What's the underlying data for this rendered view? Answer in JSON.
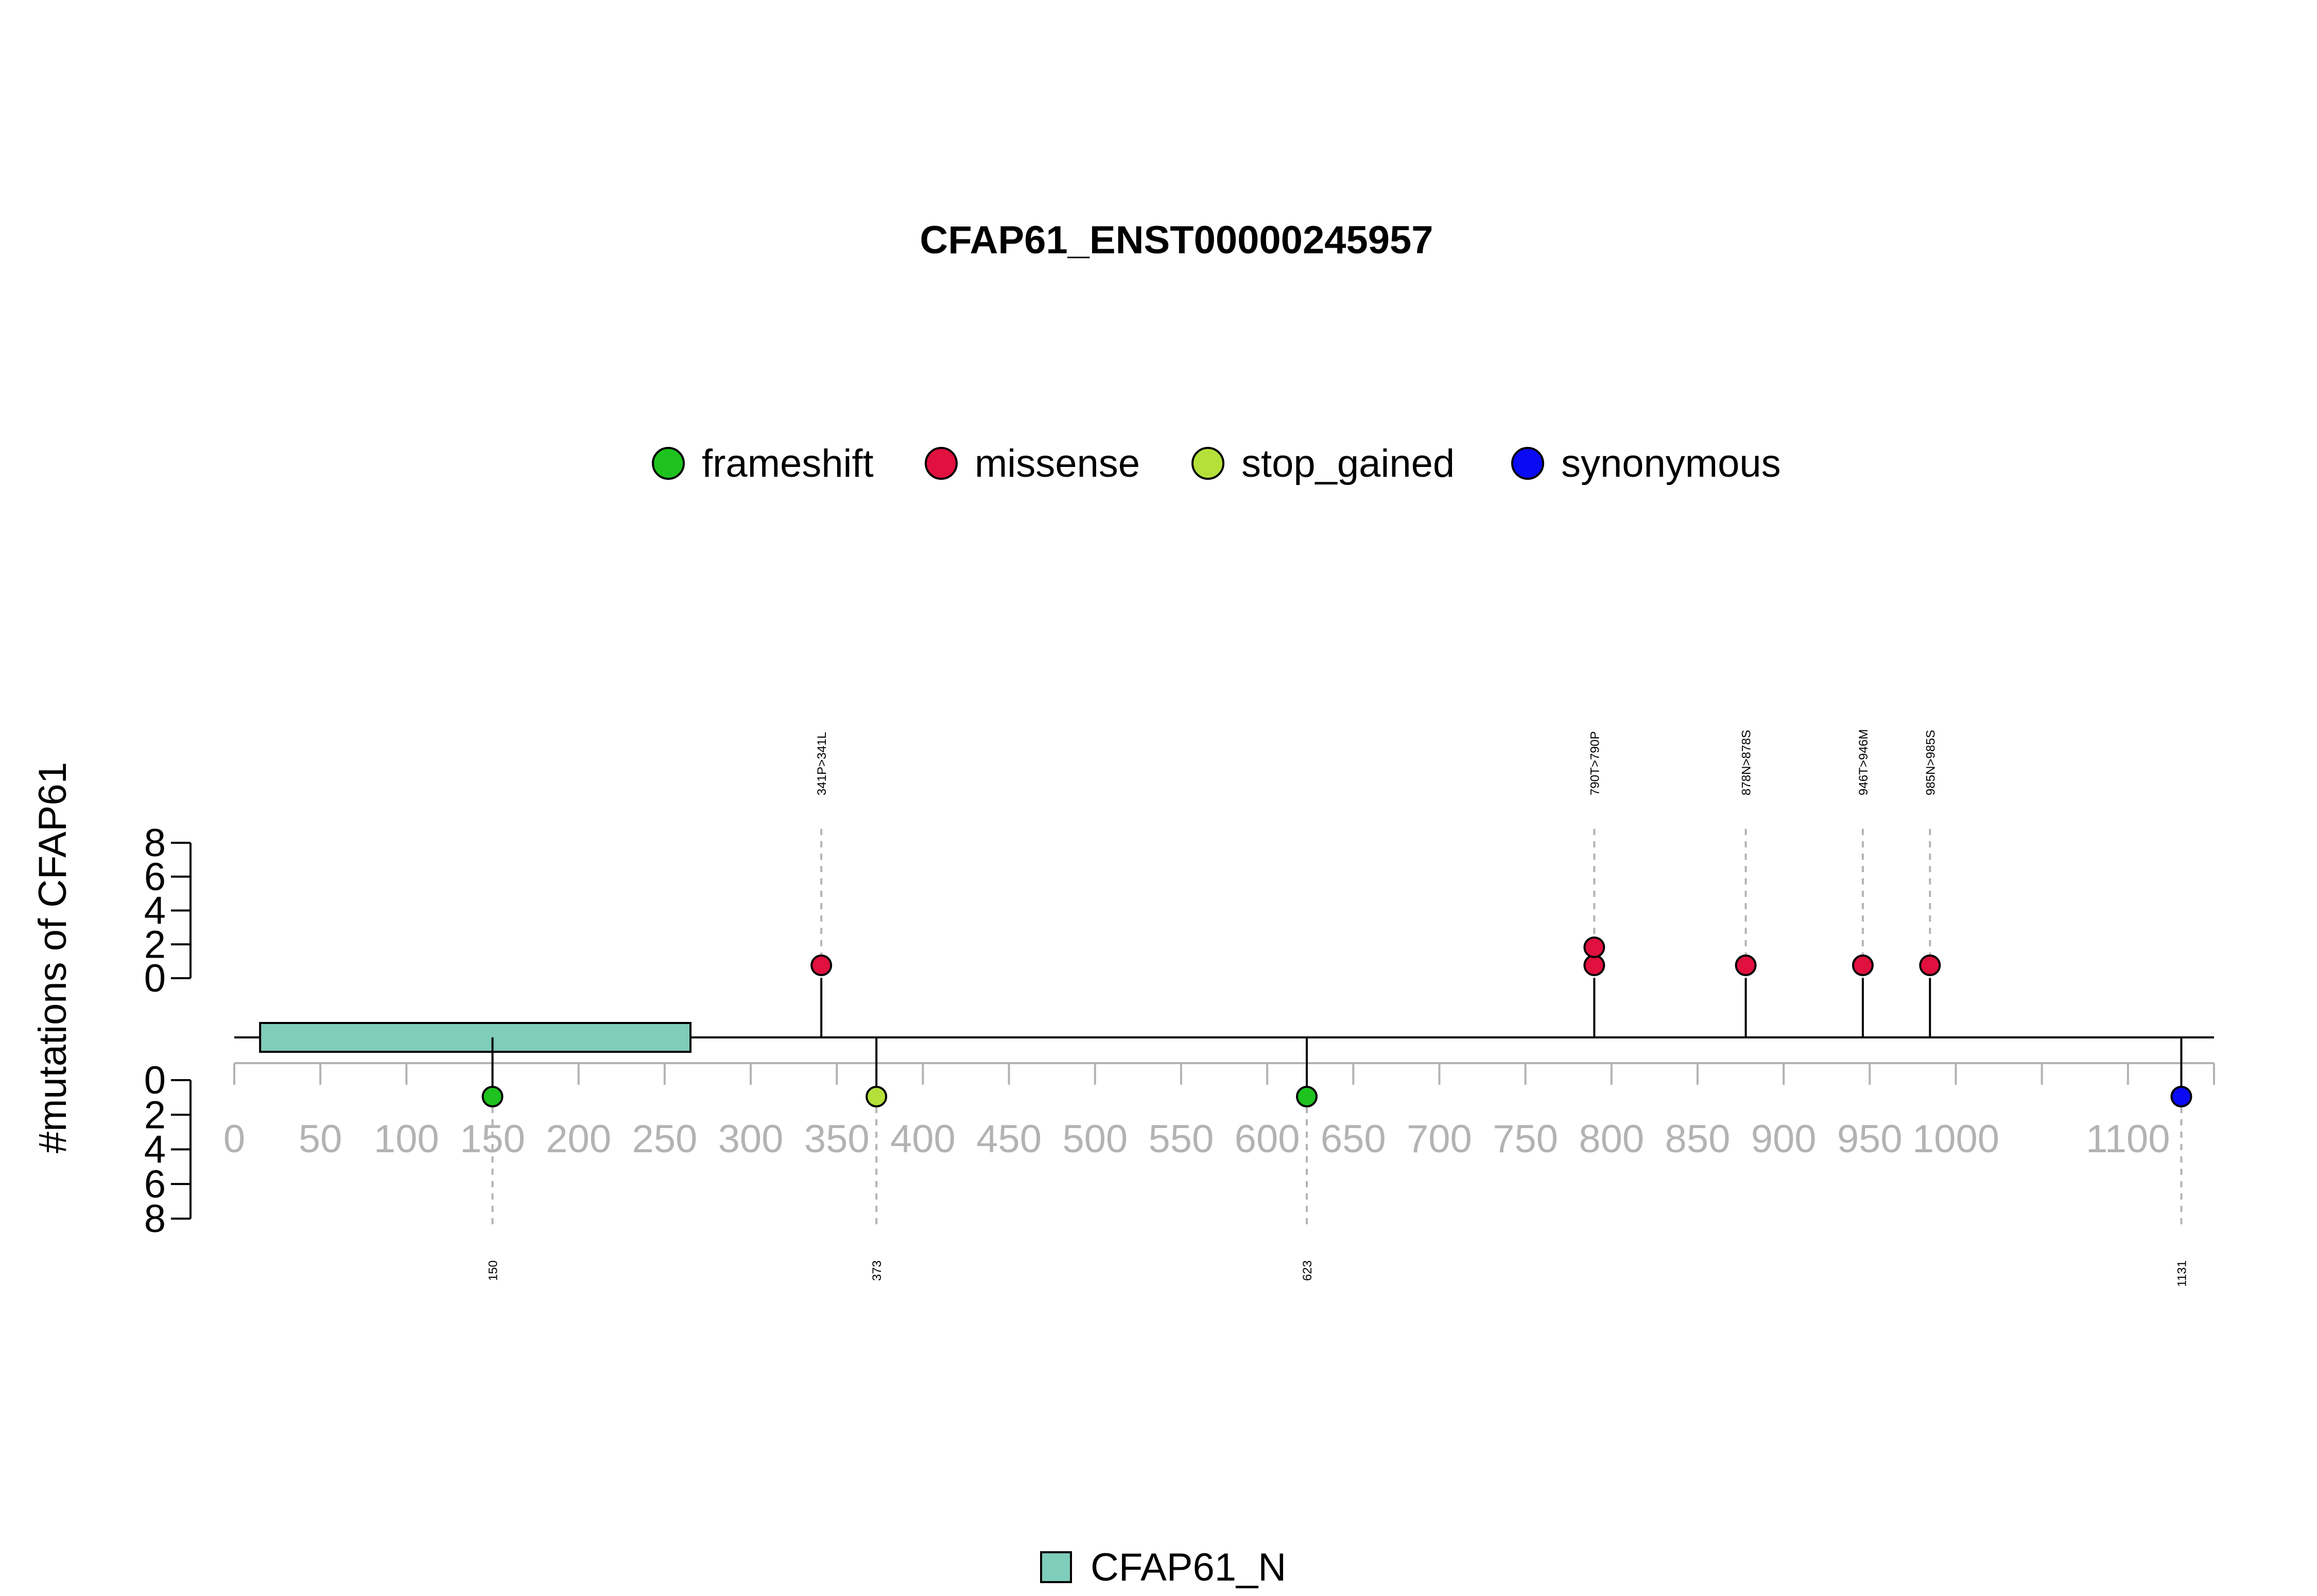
{
  "chart_data": {
    "type": "lollipop",
    "title": "CFAP61_ENST00000245957",
    "ylabel": "#mutations of CFAP61",
    "xlim": [
      0,
      1131
    ],
    "x_ticks": [
      0,
      50,
      100,
      150,
      200,
      250,
      300,
      350,
      400,
      450,
      500,
      550,
      600,
      650,
      700,
      750,
      800,
      850,
      900,
      950,
      1000,
      1100
    ],
    "y_ticks": [
      0,
      2,
      4,
      6,
      8
    ],
    "ylim": [
      0,
      8
    ],
    "legend": [
      {
        "name": "frameshift",
        "color": "#1ec21e"
      },
      {
        "name": "missense",
        "color": "#e0103f"
      },
      {
        "name": "stop_gained",
        "color": "#b5e03a"
      },
      {
        "name": "synonymous",
        "color": "#0a0af5"
      }
    ],
    "domains": [
      {
        "name": "CFAP61_N",
        "start": 15,
        "end": 265,
        "color": "#7fcdbb"
      }
    ],
    "mutations_top": [
      {
        "pos": 341,
        "count": 1,
        "type": "missense",
        "label": "341P>341L"
      },
      {
        "pos": 790,
        "count": 2,
        "type": "missense",
        "label": "790T>790P"
      },
      {
        "pos": 878,
        "count": 1,
        "type": "missense",
        "label": "878N>878S"
      },
      {
        "pos": 946,
        "count": 1,
        "type": "missense",
        "label": "946T>946M"
      },
      {
        "pos": 985,
        "count": 1,
        "type": "missense",
        "label": "985N>985S"
      }
    ],
    "mutations_bottom": [
      {
        "pos": 150,
        "count": 1,
        "type": "frameshift",
        "label": "150"
      },
      {
        "pos": 373,
        "count": 1,
        "type": "stop_gained",
        "label": "373"
      },
      {
        "pos": 623,
        "count": 1,
        "type": "frameshift",
        "label": "623"
      },
      {
        "pos": 1131,
        "count": 1,
        "type": "synonymous",
        "label": "1131"
      }
    ]
  }
}
